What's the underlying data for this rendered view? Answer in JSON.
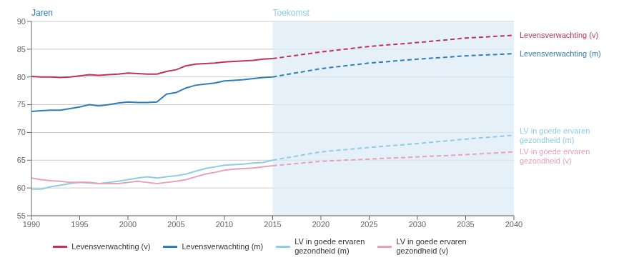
{
  "chart_data": {
    "type": "line",
    "xlim": [
      1990,
      2040
    ],
    "xticks": [
      1990,
      1995,
      2000,
      2005,
      2010,
      2015,
      2020,
      2025,
      2030,
      2035,
      2040
    ],
    "ylim": [
      55,
      90
    ],
    "yticks": [
      55,
      60,
      65,
      70,
      75,
      80,
      85,
      90
    ],
    "grid": "y",
    "future_start": 2015,
    "future_color": "#dce9f5",
    "annotations": [
      {
        "text": "Jaren",
        "x": 1990,
        "color": "#2e7eb8"
      },
      {
        "text": "Toekomst",
        "x": 2015,
        "color": "#8dcde8"
      }
    ],
    "series": [
      {
        "name": "Levensverwachting (v)",
        "color": "#c0325a",
        "x": [
          1990,
          1991,
          1992,
          1993,
          1994,
          1995,
          1996,
          1997,
          1998,
          1999,
          2000,
          2001,
          2002,
          2003,
          2004,
          2005,
          2006,
          2007,
          2008,
          2009,
          2010,
          2011,
          2012,
          2013,
          2014,
          2015,
          2020,
          2025,
          2030,
          2035,
          2040
        ],
        "values": [
          80.1,
          80.0,
          80.0,
          79.9,
          80.0,
          80.2,
          80.4,
          80.3,
          80.4,
          80.5,
          80.7,
          80.6,
          80.5,
          80.5,
          81.0,
          81.3,
          82.0,
          82.3,
          82.4,
          82.5,
          82.7,
          82.8,
          82.9,
          83.0,
          83.2,
          83.3,
          84.5,
          85.5,
          86.2,
          87.0,
          87.5
        ]
      },
      {
        "name": "Levensverwachting (m)",
        "color": "#2e7eb8",
        "x": [
          1990,
          1991,
          1992,
          1993,
          1994,
          1995,
          1996,
          1997,
          1998,
          1999,
          2000,
          2001,
          2002,
          2003,
          2004,
          2005,
          2006,
          2007,
          2008,
          2009,
          2010,
          2011,
          2012,
          2013,
          2014,
          2015,
          2020,
          2025,
          2030,
          2035,
          2040
        ],
        "values": [
          73.8,
          73.9,
          74.0,
          74.0,
          74.3,
          74.6,
          75.0,
          74.8,
          75.0,
          75.3,
          75.5,
          75.4,
          75.4,
          75.5,
          76.9,
          77.2,
          78.0,
          78.5,
          78.7,
          78.9,
          79.3,
          79.4,
          79.5,
          79.7,
          79.9,
          80.0,
          81.5,
          82.5,
          83.2,
          83.8,
          84.2
        ]
      },
      {
        "name": "LV in goede ervaren\ngezondheid (m)",
        "color": "#8dcde8",
        "x": [
          1990,
          1991,
          1992,
          1993,
          1994,
          1995,
          1996,
          1997,
          1998,
          1999,
          2000,
          2001,
          2002,
          2003,
          2004,
          2005,
          2006,
          2007,
          2008,
          2009,
          2010,
          2011,
          2012,
          2013,
          2014,
          2015,
          2020,
          2025,
          2030,
          2035,
          2040
        ],
        "values": [
          59.8,
          59.8,
          60.2,
          60.5,
          60.8,
          61.0,
          60.9,
          60.8,
          61.0,
          61.2,
          61.5,
          61.8,
          62.0,
          61.8,
          62.0,
          62.2,
          62.5,
          63.0,
          63.5,
          63.8,
          64.1,
          64.2,
          64.3,
          64.5,
          64.6,
          65.0,
          66.5,
          67.3,
          68.0,
          68.8,
          69.5
        ]
      },
      {
        "name": "LV in goede ervaren\ngezondheid (v)",
        "color": "#e8a0bc",
        "x": [
          1990,
          1991,
          1992,
          1993,
          1994,
          1995,
          1996,
          1997,
          1998,
          1999,
          2000,
          2001,
          2002,
          2003,
          2004,
          2005,
          2006,
          2007,
          2008,
          2009,
          2010,
          2011,
          2012,
          2013,
          2014,
          2015,
          2020,
          2025,
          2030,
          2035,
          2040
        ],
        "values": [
          61.8,
          61.5,
          61.3,
          61.2,
          61.0,
          61.0,
          61.0,
          60.8,
          60.8,
          60.8,
          61.0,
          61.2,
          61.0,
          60.8,
          61.0,
          61.2,
          61.5,
          62.0,
          62.5,
          62.8,
          63.2,
          63.4,
          63.5,
          63.6,
          63.8,
          64.0,
          64.8,
          65.2,
          65.6,
          66.0,
          66.5
        ]
      }
    ]
  }
}
